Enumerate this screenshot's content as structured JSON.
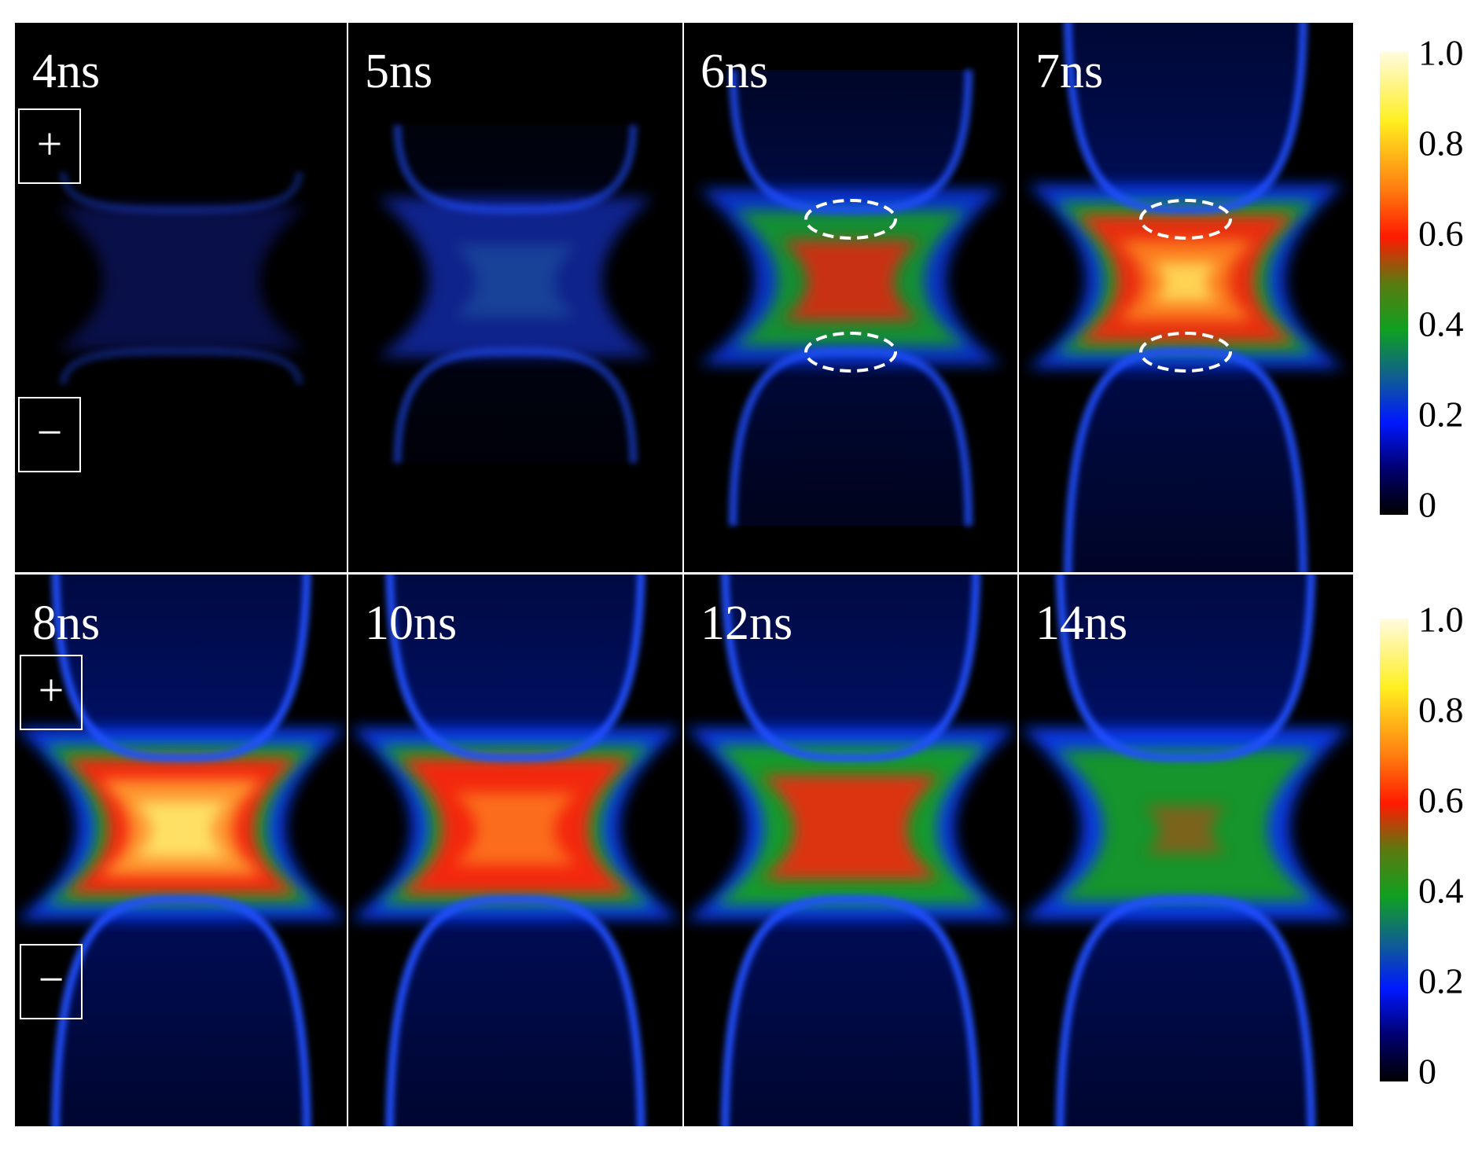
{
  "panels": [
    {
      "label": "4ns"
    },
    {
      "label": "5ns"
    },
    {
      "label": "6ns"
    },
    {
      "label": "7ns"
    },
    {
      "label": "8ns"
    },
    {
      "label": "10ns"
    },
    {
      "label": "12ns"
    },
    {
      "label": "14ns"
    }
  ],
  "electrodes": {
    "anode": "+",
    "cathode": "−"
  },
  "colorbars": [
    {
      "ticks": [
        0,
        0.2,
        0.4,
        0.6,
        0.8,
        {
          "value": 1,
          "label": "1.0"
        }
      ]
    },
    {
      "ticks": [
        0,
        0.2,
        0.4,
        0.6,
        0.8,
        {
          "value": 1,
          "label": "1.0"
        }
      ]
    }
  ]
}
